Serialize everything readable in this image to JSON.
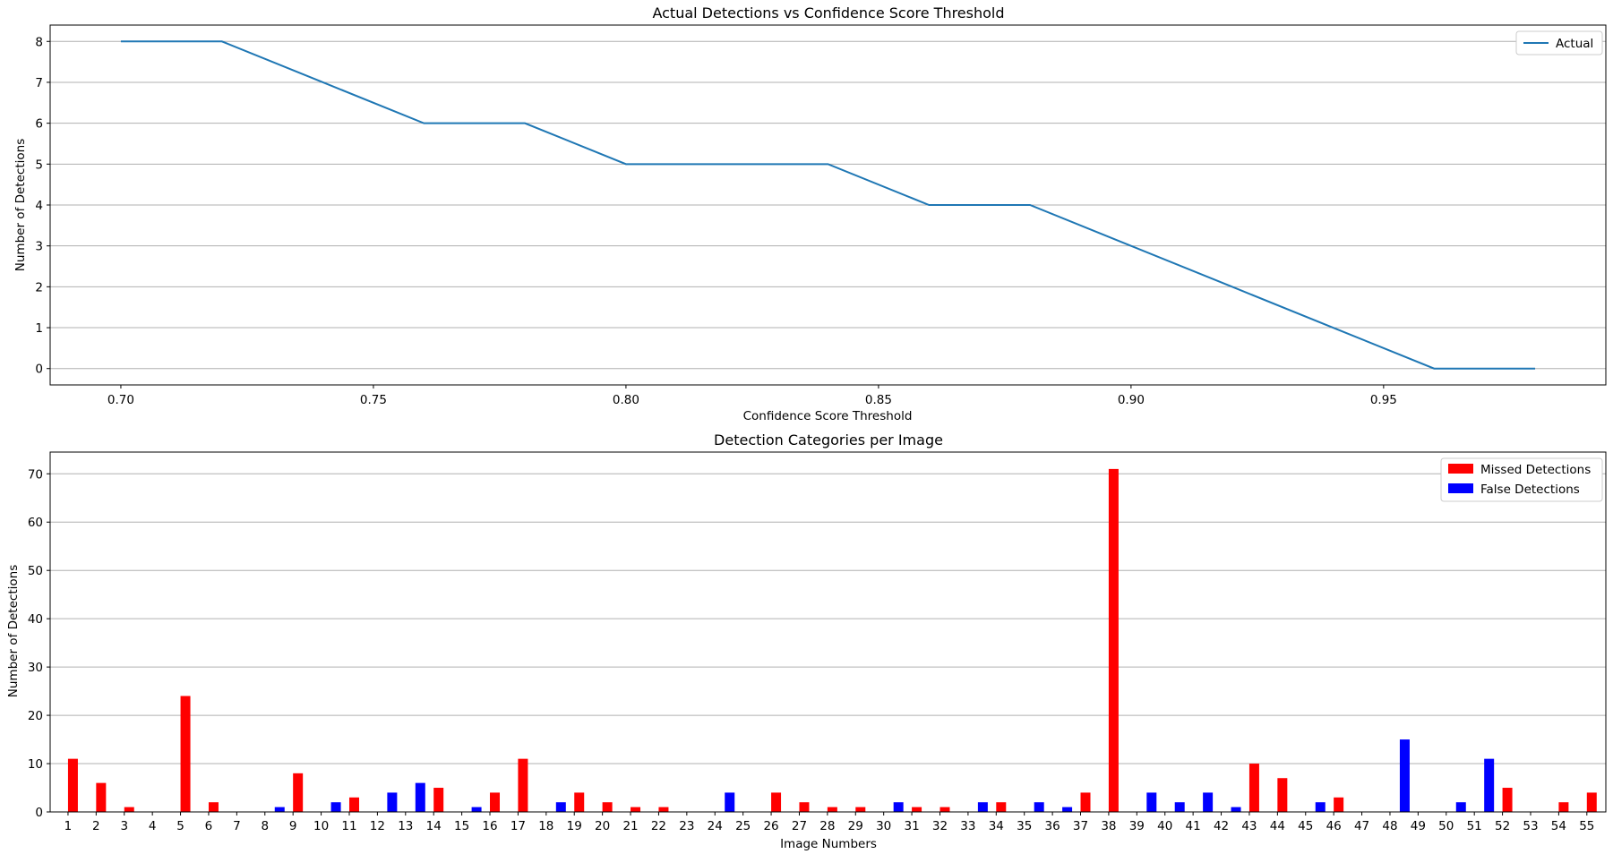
{
  "chart_data": [
    {
      "type": "line",
      "title": "Actual Detections vs Confidence Score Threshold",
      "xlabel": "Confidence Score Threshold",
      "ylabel": "Number of Detections",
      "xlim": [
        0.686,
        0.994
      ],
      "ylim": [
        -0.4,
        8.4
      ],
      "xticks": [
        0.7,
        0.75,
        0.8,
        0.85,
        0.9,
        0.95
      ],
      "xtick_labels": [
        "0.70",
        "0.75",
        "0.80",
        "0.85",
        "0.90",
        "0.95"
      ],
      "yticks": [
        0,
        1,
        2,
        3,
        4,
        5,
        6,
        7,
        8
      ],
      "grid": "y",
      "legend_position": "top-right",
      "series": [
        {
          "name": "Actual",
          "color": "#1f77b4",
          "x": [
            0.7,
            0.72,
            0.74,
            0.76,
            0.78,
            0.8,
            0.82,
            0.84,
            0.86,
            0.88,
            0.9,
            0.92,
            0.94,
            0.96,
            0.98
          ],
          "y": [
            8,
            8,
            7,
            6,
            6,
            5,
            5,
            5,
            4,
            4,
            3,
            2,
            1,
            0,
            0
          ]
        }
      ]
    },
    {
      "type": "bar",
      "title": "Detection Categories per Image",
      "xlabel": "Image Numbers",
      "ylabel": "Number of Detections",
      "ylim": [
        0,
        74.5
      ],
      "yticks": [
        0,
        10,
        20,
        30,
        40,
        50,
        60,
        70
      ],
      "grid": "y",
      "legend_position": "top-right",
      "categories": [
        "1",
        "2",
        "3",
        "4",
        "5",
        "6",
        "7",
        "8",
        "9",
        "10",
        "11",
        "12",
        "13",
        "14",
        "15",
        "16",
        "17",
        "18",
        "19",
        "20",
        "21",
        "22",
        "23",
        "24",
        "25",
        "26",
        "27",
        "28",
        "29",
        "30",
        "31",
        "32",
        "33",
        "34",
        "35",
        "36",
        "37",
        "38",
        "39",
        "40",
        "41",
        "42",
        "43",
        "44",
        "45",
        "46",
        "47",
        "48",
        "49",
        "50",
        "51",
        "52",
        "53",
        "54",
        "55"
      ],
      "series": [
        {
          "name": "Missed Detections",
          "color": "#ff0000",
          "values": [
            11,
            6,
            1,
            0,
            24,
            2,
            0,
            0,
            8,
            0,
            3,
            0,
            0,
            5,
            0,
            4,
            11,
            0,
            4,
            2,
            1,
            1,
            0,
            0,
            0,
            4,
            2,
            1,
            1,
            0,
            1,
            1,
            0,
            2,
            0,
            0,
            4,
            71,
            0,
            0,
            0,
            0,
            10,
            7,
            0,
            3,
            0,
            0,
            0,
            0,
            0,
            5,
            0,
            2,
            4
          ]
        },
        {
          "name": "False Detections",
          "color": "#0000ff",
          "values": [
            0,
            0,
            0,
            0,
            0,
            0,
            0,
            1,
            0,
            2,
            0,
            4,
            6,
            0,
            1,
            0,
            0,
            2,
            0,
            0,
            0,
            0,
            0,
            4,
            0,
            0,
            0,
            0,
            0,
            2,
            0,
            0,
            2,
            0,
            2,
            1,
            0,
            0,
            4,
            2,
            4,
            1,
            0,
            0,
            2,
            0,
            0,
            15,
            0,
            2,
            11,
            0,
            0,
            0,
            0
          ]
        }
      ]
    }
  ]
}
